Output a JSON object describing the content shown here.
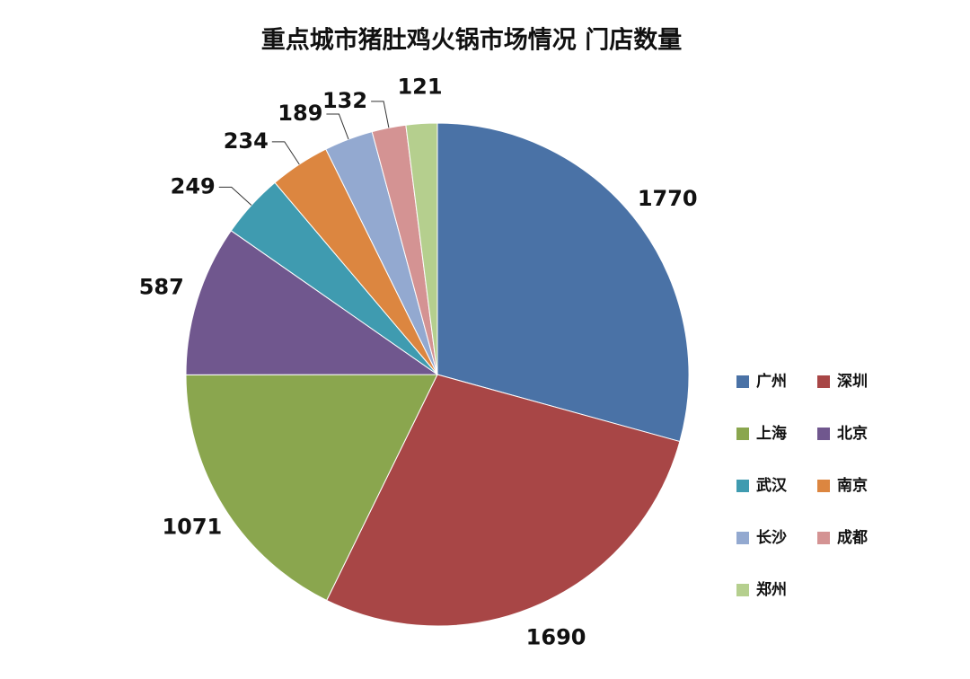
{
  "chart_data": {
    "type": "pie",
    "title": "重点城市猪肚鸡火锅市场情况 门店数量",
    "categories": [
      "广州",
      "深圳",
      "上海",
      "北京",
      "武汉",
      "南京",
      "长沙",
      "成都",
      "郑州"
    ],
    "values": [
      1770,
      1690,
      1071,
      587,
      249,
      234,
      189,
      132,
      121
    ],
    "colors": [
      "#4a72a6",
      "#a84646",
      "#8aa64e",
      "#70578e",
      "#3f9bb0",
      "#dc8640",
      "#93a9d0",
      "#d49393",
      "#b5cf8e"
    ],
    "legend": "right"
  }
}
